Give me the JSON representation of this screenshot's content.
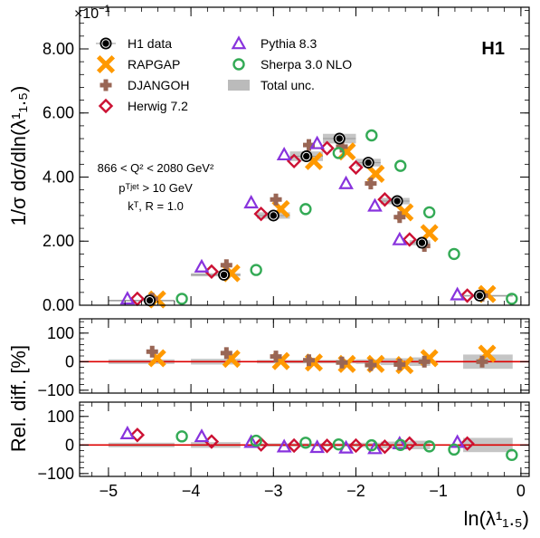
{
  "chart_data": {
    "type": "scatter",
    "experiment_tag": "H1",
    "y_exponent": "×10",
    "y_exponent_power": "−1",
    "ylabel_main": "1/σ dσ/dln(λ¹₁.₅)",
    "ylabel_ratio": "Rel. diff. [%]",
    "xlabel": "ln(λ¹₁.₅)",
    "xlim": [
      -5.35,
      0.1
    ],
    "ylim_main": [
      0,
      9.3
    ],
    "ylim_ratio": [
      -110,
      150
    ],
    "x_ticks": [
      "-5",
      "-4",
      "-3",
      "-2",
      "-1",
      "0"
    ],
    "y_ticks_main": [
      "0.00",
      "2.00",
      "4.00",
      "6.00",
      "8.00"
    ],
    "y_ticks_ratio": [
      "−100",
      "0",
      "100"
    ],
    "annotation": [
      "866 < Q² < 2080 GeV²",
      "pᵀʲᵉᵗ > 10 GeV",
      "kᵀ, R = 1.0"
    ],
    "legend": [
      {
        "key": "data",
        "label": "H1 data"
      },
      {
        "key": "rapgap",
        "label": "RAPGAP"
      },
      {
        "key": "djangoh",
        "label": "DJANGOH"
      },
      {
        "key": "herwig",
        "label": "Herwig 7.2"
      },
      {
        "key": "pythia",
        "label": "Pythia 8.3"
      },
      {
        "key": "sherpa",
        "label": "Sherpa 3.0 NLO"
      },
      {
        "key": "unc",
        "label": "Total unc."
      }
    ],
    "colors": {
      "data": "#000000",
      "rapgap": "#ff9900",
      "djangoh": "#996655",
      "herwig": "#cc1133",
      "pythia": "#8833dd",
      "sherpa": "#33aa55",
      "unc": "#bbbbbb",
      "ref_line": "#dd0000"
    },
    "bins": [
      {
        "lo": -5.0,
        "hi": -4.2
      },
      {
        "lo": -4.0,
        "hi": -3.4
      },
      {
        "lo": -3.2,
        "hi": -2.8
      },
      {
        "lo": -2.8,
        "hi": -2.4
      },
      {
        "lo": -2.4,
        "hi": -2.0
      },
      {
        "lo": -2.0,
        "hi": -1.7
      },
      {
        "lo": -1.7,
        "hi": -1.35
      },
      {
        "lo": -1.35,
        "hi": -1.1
      },
      {
        "lo": -0.7,
        "hi": -0.1
      }
    ],
    "x_centers": [
      -4.5,
      -3.6,
      -3.0,
      -2.6,
      -2.2,
      -1.85,
      -1.5,
      -1.2,
      -0.5
    ],
    "data": {
      "values": [
        0.15,
        0.95,
        2.8,
        4.65,
        5.2,
        4.45,
        3.25,
        1.95,
        0.3
      ],
      "errors": [
        0.02,
        0.05,
        0.1,
        0.15,
        0.15,
        0.12,
        0.1,
        0.08,
        0.02
      ],
      "rel_unc": [
        8,
        10,
        6,
        6,
        6,
        8,
        12,
        15,
        25
      ]
    },
    "series": [
      {
        "key": "rapgap",
        "name": "RAPGAP",
        "marker": "x-cross",
        "x_offset": 0.09,
        "main_values": [
          0.18,
          1.0,
          3.0,
          4.5,
          4.8,
          4.1,
          2.9,
          2.25,
          0.35
        ],
        "ratio_values": [
          12,
          10,
          2,
          -3,
          -8,
          -8,
          -12,
          12,
          28
        ],
        "panel": "top"
      },
      {
        "key": "djangoh",
        "name": "DJANGOH",
        "marker": "plus",
        "x_offset": 0.03,
        "main_values": [
          0.2,
          1.25,
          3.3,
          5.0,
          4.95,
          3.8,
          2.75,
          1.85,
          0.3
        ],
        "ratio_values": [
          35,
          30,
          18,
          5,
          -3,
          -12,
          -10,
          0,
          0
        ],
        "panel": "top"
      },
      {
        "key": "herwig",
        "name": "Herwig 7.2",
        "marker": "diamond",
        "x_offset": -0.15,
        "main_values": [
          0.2,
          1.05,
          2.85,
          4.5,
          4.9,
          4.3,
          3.3,
          2.05,
          0.3
        ],
        "ratio_values": [
          35,
          12,
          2,
          -2,
          -3,
          -2,
          -6,
          5,
          5
        ],
        "panel": "bottom"
      },
      {
        "key": "pythia",
        "name": "Pythia 8.3",
        "marker": "triangle",
        "x_offset": -0.27,
        "main_values": [
          0.2,
          1.2,
          3.2,
          4.7,
          5.05,
          3.8,
          3.1,
          2.05,
          0.33
        ],
        "ratio_values": [
          40,
          30,
          10,
          -6,
          -8,
          -10,
          -12,
          5,
          10
        ],
        "panel": "bottom"
      },
      {
        "key": "sherpa",
        "name": "Sherpa 3.0 NLO",
        "marker": "circle",
        "x_offset": 0.39,
        "main_values": [
          0.2,
          1.1,
          3.0,
          4.75,
          5.3,
          4.35,
          2.9,
          1.6,
          0.2
        ],
        "ratio_values": [
          30,
          15,
          8,
          2,
          -1,
          0,
          -5,
          -16,
          -35
        ],
        "panel": "bottom"
      }
    ]
  }
}
